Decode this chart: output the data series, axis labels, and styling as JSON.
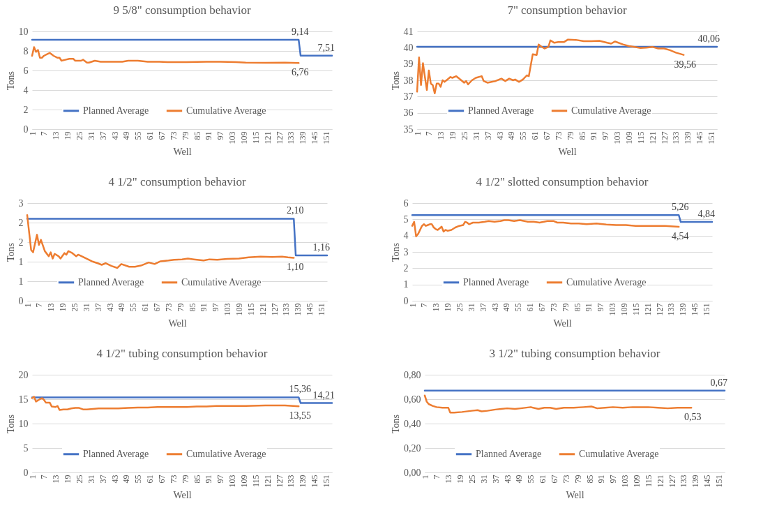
{
  "chart_data": [
    {
      "type": "line",
      "title": "9 5/8\" consumption behavior",
      "xlabel": "Well",
      "ylabel": "Tons",
      "xlim": [
        1,
        154
      ],
      "xticks": [
        1,
        7,
        13,
        19,
        25,
        31,
        37,
        43,
        49,
        55,
        61,
        67,
        73,
        79,
        85,
        91,
        97,
        103,
        109,
        115,
        121,
        127,
        133,
        139,
        145,
        151
      ],
      "ylim": [
        0,
        10
      ],
      "yticks": [
        0,
        2,
        4,
        6,
        8,
        10
      ],
      "grid": "y",
      "legend": "bottom",
      "series": [
        {
          "name": "Planned Average",
          "color": "#4472c4",
          "x": [
            1,
            137,
            138,
            154
          ],
          "values": [
            9.14,
            9.14,
            7.51,
            7.51
          ],
          "value_labels": [
            null,
            "9,14",
            null,
            "7,51"
          ]
        },
        {
          "name": "Cumulative Average",
          "color": "#ed7d31",
          "x": [
            1,
            2,
            3,
            4,
            5,
            6,
            7,
            9,
            10,
            12,
            14,
            15,
            16,
            18,
            20,
            22,
            23,
            26,
            27,
            29,
            30,
            33,
            36,
            40,
            43,
            47,
            50,
            55,
            60,
            66,
            70,
            80,
            90,
            97,
            105,
            110,
            120,
            130,
            137
          ],
          "values": [
            7.5,
            8.4,
            7.9,
            8.1,
            7.3,
            7.3,
            7.5,
            7.7,
            7.8,
            7.5,
            7.3,
            7.3,
            7.0,
            7.1,
            7.2,
            7.2,
            7.0,
            7.0,
            7.1,
            6.8,
            6.8,
            7.0,
            6.9,
            6.9,
            6.9,
            6.9,
            7.0,
            7.0,
            6.9,
            6.9,
            6.85,
            6.85,
            6.9,
            6.9,
            6.85,
            6.8,
            6.78,
            6.8,
            6.76
          ],
          "value_labels": [
            null,
            null,
            null,
            null,
            null,
            null,
            null,
            null,
            null,
            null,
            null,
            null,
            null,
            null,
            null,
            null,
            null,
            null,
            null,
            null,
            null,
            null,
            null,
            null,
            null,
            null,
            null,
            null,
            null,
            null,
            null,
            null,
            null,
            null,
            null,
            null,
            null,
            null,
            "6,76"
          ]
        }
      ]
    },
    {
      "type": "line",
      "title": "7\" consumption behavior",
      "xlabel": "Well",
      "ylabel": "Tons",
      "xlim": [
        1,
        154
      ],
      "xticks": [
        1,
        7,
        13,
        19,
        25,
        31,
        37,
        43,
        49,
        55,
        61,
        67,
        73,
        79,
        85,
        91,
        97,
        103,
        109,
        115,
        121,
        127,
        133,
        139,
        145,
        151
      ],
      "ylim": [
        35,
        41
      ],
      "yticks": [
        35,
        36,
        37,
        38,
        39,
        40,
        41
      ],
      "grid": "y",
      "legend": "bottom",
      "series": [
        {
          "name": "Planned Average",
          "color": "#4472c4",
          "x": [
            1,
            154
          ],
          "values": [
            40.06,
            40.06
          ],
          "value_labels": [
            null,
            "40,06"
          ]
        },
        {
          "name": "Cumulative Average",
          "color": "#ed7d31",
          "x": [
            1,
            2,
            3,
            4,
            5,
            6,
            7,
            8,
            9,
            10,
            11,
            12,
            13,
            14,
            15,
            17,
            18,
            19,
            21,
            23,
            25,
            26,
            27,
            29,
            31,
            34,
            35,
            37,
            39,
            41,
            44,
            46,
            48,
            50,
            51,
            53,
            55,
            57,
            58,
            60,
            62,
            63,
            64,
            66,
            68,
            69,
            71,
            73,
            76,
            78,
            82,
            86,
            90,
            94,
            98,
            100,
            102,
            106,
            109,
            112,
            115,
            118,
            121,
            124,
            127,
            130,
            133,
            137
          ],
          "values": [
            37.3,
            39.4,
            37.7,
            39.05,
            38.2,
            37.4,
            38.6,
            37.8,
            37.7,
            37.2,
            37.8,
            37.8,
            37.6,
            38.0,
            37.9,
            38.1,
            38.2,
            38.15,
            38.25,
            38.05,
            37.85,
            37.95,
            37.75,
            38.0,
            38.15,
            38.25,
            37.95,
            37.85,
            37.9,
            37.95,
            38.1,
            37.95,
            38.1,
            38.0,
            38.05,
            37.9,
            38.05,
            38.3,
            38.25,
            39.6,
            39.55,
            40.2,
            40.1,
            39.95,
            40.05,
            40.45,
            40.3,
            40.35,
            40.35,
            40.5,
            40.48,
            40.4,
            40.4,
            40.42,
            40.3,
            40.25,
            40.38,
            40.2,
            40.1,
            40.05,
            39.98,
            40.0,
            40.05,
            39.95,
            39.95,
            39.85,
            39.7,
            39.56
          ],
          "value_labels": [
            null,
            null,
            null,
            null,
            null,
            null,
            null,
            null,
            null,
            null,
            null,
            null,
            null,
            null,
            null,
            null,
            null,
            null,
            null,
            null,
            null,
            null,
            null,
            null,
            null,
            null,
            null,
            null,
            null,
            null,
            null,
            null,
            null,
            null,
            null,
            null,
            null,
            null,
            null,
            null,
            null,
            null,
            null,
            null,
            null,
            null,
            null,
            null,
            null,
            null,
            null,
            null,
            null,
            null,
            null,
            null,
            null,
            null,
            null,
            null,
            null,
            null,
            null,
            null,
            null,
            null,
            null,
            "39,56"
          ]
        }
      ]
    },
    {
      "type": "line",
      "title": "4 1/2\" consumption behavior",
      "xlabel": "Well",
      "ylabel": "Tons",
      "xlim": [
        1,
        154
      ],
      "xticks": [
        1,
        7,
        13,
        19,
        25,
        31,
        37,
        43,
        49,
        55,
        61,
        67,
        73,
        79,
        85,
        91,
        97,
        103,
        109,
        115,
        121,
        127,
        133,
        139,
        145,
        151
      ],
      "ylim": [
        0,
        2.5
      ],
      "yticks": [
        0,
        {
          "value": 0.5,
          "label": "1"
        },
        1,
        {
          "value": 1.5,
          "label": "2"
        },
        2,
        {
          "value": 2.5,
          "label": "3"
        }
      ],
      "grid": "y",
      "legend": "bottom",
      "series": [
        {
          "name": "Planned Average",
          "color": "#4472c4",
          "x": [
            1,
            137,
            138,
            154
          ],
          "values": [
            2.1,
            2.1,
            1.16,
            1.16
          ],
          "value_labels": [
            null,
            "2,10",
            null,
            "1,16"
          ]
        },
        {
          "name": "Cumulative Average",
          "color": "#ed7d31",
          "x": [
            1,
            3,
            4,
            6,
            7,
            8,
            10,
            12,
            13,
            14,
            15,
            17,
            18,
            20,
            21,
            22,
            24,
            26,
            27,
            28,
            30,
            34,
            37,
            39,
            41,
            44,
            47,
            49,
            53,
            56,
            59,
            63,
            66,
            69,
            73,
            76,
            80,
            83,
            86,
            91,
            94,
            98,
            103,
            109,
            114,
            120,
            126,
            131,
            134,
            137
          ],
          "values": [
            2.19,
            1.3,
            1.24,
            1.69,
            1.43,
            1.56,
            1.27,
            1.14,
            1.24,
            1.08,
            1.2,
            1.14,
            1.08,
            1.22,
            1.18,
            1.27,
            1.22,
            1.14,
            1.18,
            1.16,
            1.11,
            1.01,
            0.96,
            0.92,
            0.96,
            0.89,
            0.84,
            0.94,
            0.87,
            0.87,
            0.9,
            0.98,
            0.94,
            1.01,
            1.03,
            1.05,
            1.06,
            1.08,
            1.06,
            1.03,
            1.06,
            1.05,
            1.07,
            1.08,
            1.11,
            1.13,
            1.12,
            1.13,
            1.11,
            1.1
          ],
          "value_labels": [
            null,
            null,
            null,
            null,
            null,
            null,
            null,
            null,
            null,
            null,
            null,
            null,
            null,
            null,
            null,
            null,
            null,
            null,
            null,
            null,
            null,
            null,
            null,
            null,
            null,
            null,
            null,
            null,
            null,
            null,
            null,
            null,
            null,
            null,
            null,
            null,
            null,
            null,
            null,
            null,
            null,
            null,
            null,
            null,
            null,
            null,
            null,
            null,
            null,
            "1,10"
          ]
        }
      ]
    },
    {
      "type": "line",
      "title": "4 1/2\" slotted consumption behavior",
      "xlabel": "Well",
      "ylabel": "Tons",
      "xlim": [
        1,
        154
      ],
      "xticks": [
        1,
        7,
        13,
        19,
        25,
        31,
        37,
        43,
        49,
        55,
        61,
        67,
        73,
        79,
        85,
        91,
        97,
        103,
        109,
        115,
        121,
        127,
        133,
        139,
        145,
        151
      ],
      "ylim": [
        0,
        6
      ],
      "yticks": [
        0,
        1,
        2,
        3,
        4,
        5,
        6
      ],
      "grid": "y",
      "legend": "bottom",
      "series": [
        {
          "name": "Planned Average",
          "color": "#4472c4",
          "x": [
            1,
            137,
            138,
            154
          ],
          "values": [
            5.26,
            5.26,
            4.84,
            4.84
          ],
          "value_labels": [
            null,
            "5,26",
            null,
            "4,84"
          ]
        },
        {
          "name": "Cumulative Average",
          "color": "#ed7d31",
          "x": [
            1,
            2,
            3,
            4,
            5,
            6,
            7,
            8,
            9,
            10,
            11,
            12,
            13,
            14,
            15,
            16,
            17,
            18,
            19,
            21,
            23,
            25,
            27,
            28,
            29,
            30,
            32,
            35,
            38,
            40,
            43,
            46,
            48,
            50,
            53,
            56,
            60,
            63,
            66,
            70,
            73,
            75,
            78,
            82,
            86,
            90,
            95,
            100,
            105,
            110,
            115,
            120,
            125,
            130,
            137
          ],
          "values": [
            4.6,
            4.85,
            3.95,
            4.1,
            4.35,
            4.6,
            4.7,
            4.6,
            4.65,
            4.7,
            4.7,
            4.5,
            4.4,
            4.35,
            4.45,
            4.55,
            4.25,
            4.35,
            4.3,
            4.35,
            4.5,
            4.6,
            4.65,
            4.85,
            4.8,
            4.7,
            4.8,
            4.8,
            4.85,
            4.9,
            4.85,
            4.9,
            4.95,
            4.95,
            4.9,
            4.95,
            4.85,
            4.85,
            4.8,
            4.9,
            4.9,
            4.8,
            4.8,
            4.75,
            4.75,
            4.7,
            4.75,
            4.68,
            4.65,
            4.65,
            4.6,
            4.6,
            4.6,
            4.6,
            4.54
          ],
          "value_labels": [
            null,
            null,
            null,
            null,
            null,
            null,
            null,
            null,
            null,
            null,
            null,
            null,
            null,
            null,
            null,
            null,
            null,
            null,
            null,
            null,
            null,
            null,
            null,
            null,
            null,
            null,
            null,
            null,
            null,
            null,
            null,
            null,
            null,
            null,
            null,
            null,
            null,
            null,
            null,
            null,
            null,
            null,
            null,
            null,
            null,
            null,
            null,
            null,
            null,
            null,
            null,
            null,
            null,
            null,
            "4,54"
          ]
        }
      ]
    },
    {
      "type": "line",
      "title": "4 1/2\" tubing consumption behavior",
      "xlabel": "Well",
      "ylabel": "Tons",
      "xlim": [
        1,
        154
      ],
      "xticks": [
        1,
        7,
        13,
        19,
        25,
        31,
        37,
        43,
        49,
        55,
        61,
        67,
        73,
        79,
        85,
        91,
        97,
        103,
        109,
        115,
        121,
        127,
        133,
        139,
        145,
        151
      ],
      "ylim": [
        0,
        20
      ],
      "yticks": [
        0,
        5,
        10,
        15,
        20
      ],
      "grid": "y",
      "legend": "bottom",
      "series": [
        {
          "name": "Planned Average",
          "color": "#4472c4",
          "x": [
            1,
            137,
            138,
            154
          ],
          "values": [
            15.36,
            15.36,
            14.21,
            14.21
          ],
          "value_labels": [
            null,
            "15,36",
            null,
            "14,21"
          ]
        },
        {
          "name": "Cumulative Average",
          "color": "#ed7d31",
          "x": [
            1,
            2,
            3,
            5,
            6,
            7,
            8,
            10,
            11,
            13,
            14,
            15,
            17,
            19,
            21,
            23,
            25,
            27,
            29,
            32,
            35,
            40,
            45,
            50,
            55,
            60,
            65,
            70,
            75,
            80,
            85,
            90,
            95,
            100,
            110,
            120,
            130,
            137
          ],
          "values": [
            15.2,
            15.5,
            14.5,
            15.0,
            15.2,
            14.9,
            14.3,
            14.3,
            13.5,
            13.4,
            13.6,
            12.8,
            12.9,
            12.9,
            13.1,
            13.2,
            13.2,
            12.9,
            12.9,
            13.0,
            13.1,
            13.1,
            13.1,
            13.2,
            13.3,
            13.3,
            13.4,
            13.4,
            13.4,
            13.4,
            13.5,
            13.5,
            13.6,
            13.6,
            13.6,
            13.7,
            13.7,
            13.55
          ],
          "value_labels": [
            null,
            null,
            null,
            null,
            null,
            null,
            null,
            null,
            null,
            null,
            null,
            null,
            null,
            null,
            null,
            null,
            null,
            null,
            null,
            null,
            null,
            null,
            null,
            null,
            null,
            null,
            null,
            null,
            null,
            null,
            null,
            null,
            null,
            null,
            null,
            null,
            null,
            "13,55"
          ]
        }
      ]
    },
    {
      "type": "line",
      "title": "3 1/2\" tubing consumption behavior",
      "xlabel": "Well",
      "ylabel": "Tons",
      "xlim": [
        1,
        154
      ],
      "xticks": [
        1,
        7,
        13,
        19,
        25,
        31,
        37,
        43,
        49,
        55,
        61,
        67,
        73,
        79,
        85,
        91,
        97,
        103,
        109,
        115,
        121,
        127,
        133,
        139,
        145,
        151
      ],
      "ylim": [
        0,
        0.8
      ],
      "yticks": [
        {
          "value": 0,
          "label": "0,00"
        },
        {
          "value": 0.2,
          "label": "0,20"
        },
        {
          "value": 0.4,
          "label": "0,40"
        },
        {
          "value": 0.6,
          "label": "0,60"
        },
        {
          "value": 0.8,
          "label": "0,80"
        }
      ],
      "grid": "y",
      "legend": "bottom",
      "series": [
        {
          "name": "Planned Average",
          "color": "#4472c4",
          "x": [
            1,
            154
          ],
          "values": [
            0.67,
            0.67
          ],
          "value_labels": [
            null,
            "0,67"
          ]
        },
        {
          "name": "Cumulative Average",
          "color": "#ed7d31",
          "x": [
            1,
            2,
            3,
            5,
            7,
            10,
            13,
            14,
            16,
            20,
            25,
            28,
            30,
            33,
            37,
            40,
            43,
            47,
            50,
            55,
            59,
            62,
            65,
            68,
            72,
            77,
            82,
            86,
            89,
            93,
            97,
            102,
            107,
            110,
            115,
            120,
            125,
            130,
            137
          ],
          "values": [
            0.63,
            0.58,
            0.56,
            0.545,
            0.535,
            0.53,
            0.53,
            0.49,
            0.49,
            0.495,
            0.505,
            0.51,
            0.5,
            0.505,
            0.515,
            0.52,
            0.525,
            0.52,
            0.525,
            0.535,
            0.52,
            0.53,
            0.53,
            0.52,
            0.53,
            0.53,
            0.535,
            0.54,
            0.525,
            0.53,
            0.535,
            0.53,
            0.535,
            0.535,
            0.535,
            0.53,
            0.525,
            0.53,
            0.53
          ],
          "value_labels": [
            null,
            null,
            null,
            null,
            null,
            null,
            null,
            null,
            null,
            null,
            null,
            null,
            null,
            null,
            null,
            null,
            null,
            null,
            null,
            null,
            null,
            null,
            null,
            null,
            null,
            null,
            null,
            null,
            null,
            null,
            null,
            null,
            null,
            null,
            null,
            null,
            null,
            null,
            "0,53"
          ]
        }
      ]
    }
  ]
}
